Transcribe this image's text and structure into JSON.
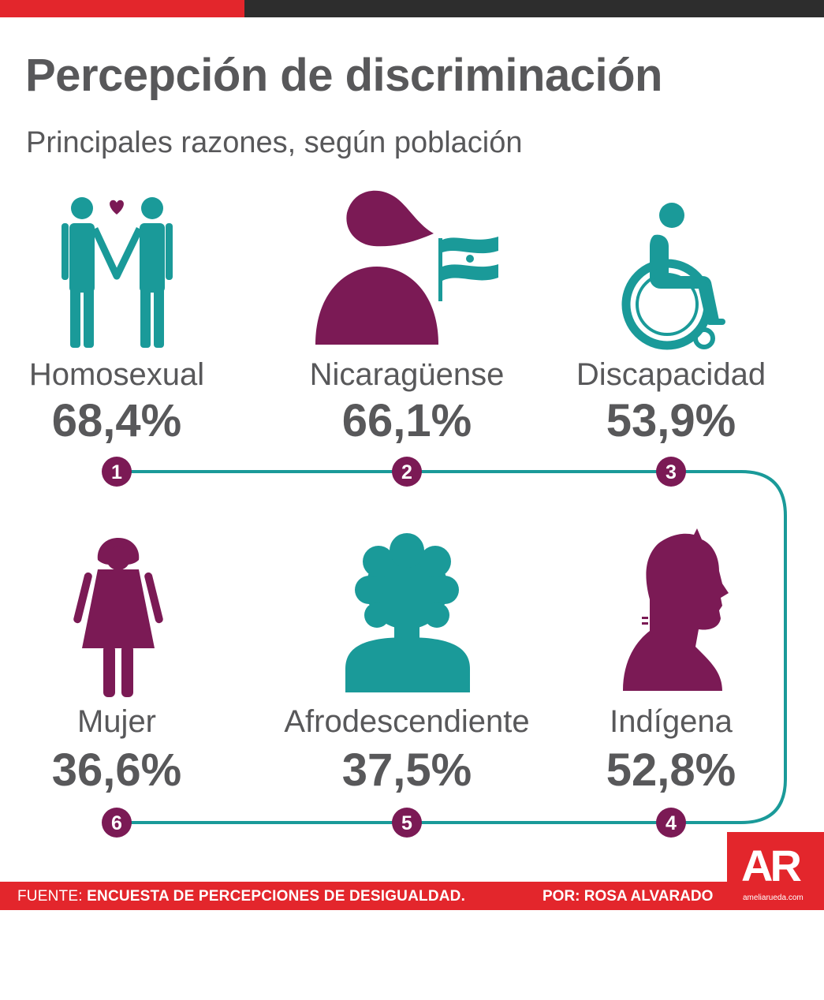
{
  "title": "Percepción de discriminación",
  "subtitle": "Principales razones, según población",
  "colors": {
    "teal": "#1a9a99",
    "purple": "#7b1a55",
    "red": "#e3262c",
    "text": "#58585a"
  },
  "chart_data": {
    "type": "table",
    "categories": [
      "Homosexual",
      "Nicaragüense",
      "Discapacidad",
      "Indígena",
      "Afrodescendiente",
      "Mujer"
    ],
    "values": [
      68.4,
      66.1,
      53.9,
      52.8,
      37.5,
      36.6
    ],
    "value_labels": [
      "68,4%",
      "66,1%",
      "53,9%",
      "52,8%",
      "37,5%",
      "36,6%"
    ],
    "ranks": [
      "1",
      "2",
      "3",
      "4",
      "5",
      "6"
    ],
    "icons": [
      "couple-icon",
      "person-with-flag-icon",
      "wheelchair-icon",
      "indigenous-profile-icon",
      "afro-person-icon",
      "woman-icon"
    ]
  },
  "footer": {
    "source_prefix": "FUENTE:",
    "source": "ENCUESTA DE PERCEPCIONES DE DESIGUALDAD.",
    "author": "POR: ROSA ALVARADO",
    "logo": "AR",
    "site": "ameliarueda.com"
  }
}
